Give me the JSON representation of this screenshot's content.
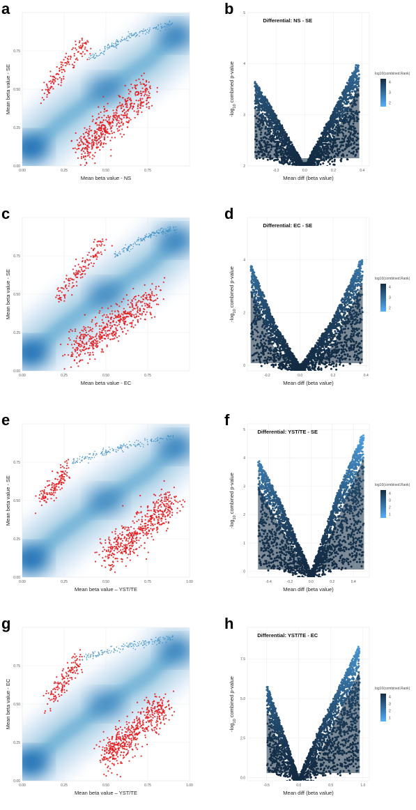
{
  "figure": {
    "panels": [
      {
        "id": "a",
        "letter": "a",
        "kind": "density",
        "xlabel": "Mean beta value - NS",
        "ylabel": "Mean beta value - SE",
        "xticks": [
          "0.00",
          "0.25",
          "0.50",
          "0.75"
        ],
        "yticks": [
          "0.00",
          "0.25",
          "0.50",
          "0.75"
        ]
      },
      {
        "id": "b",
        "letter": "b",
        "kind": "volcano",
        "title": "Differential: NS - SE",
        "xlabel": "Mean diff (beta value)",
        "ylabel_main": "-log",
        "ylabel_sub": "10",
        "ylabel_rest": " combined p-value",
        "xticks": [
          "-0.2",
          "0.0",
          "0.2",
          "0.4"
        ],
        "yticks": [
          "2",
          "3",
          "4",
          "5"
        ],
        "legend_title": "log10(combined.Rank)",
        "legend_ticks": [
          "4",
          "3",
          "2"
        ]
      },
      {
        "id": "c",
        "letter": "c",
        "kind": "density",
        "xlabel": "Mean beta value - EC",
        "ylabel": "Mean beta value - SE",
        "xticks": [
          "0.00",
          "0.25",
          "0.50",
          "0.75"
        ],
        "yticks": [
          "0.00",
          "0.25",
          "0.50",
          "0.75"
        ]
      },
      {
        "id": "d",
        "letter": "d",
        "kind": "volcano",
        "title": "Differential: EC - SE",
        "xlabel": "Mean diff (beta value)",
        "ylabel_main": "-log",
        "ylabel_sub": "10",
        "ylabel_rest": " combined p-value",
        "xticks": [
          "-0.2",
          "0.0",
          "0.2",
          "0.4"
        ],
        "yticks": [
          "0",
          "2",
          "4"
        ],
        "legend_title": "log10(combined.Rank)",
        "legend_ticks": [
          "4",
          "3",
          "2"
        ]
      },
      {
        "id": "e",
        "letter": "e",
        "kind": "density",
        "xlabel": "Mean beta value – YST/TE",
        "ylabel": "Mean beta value - SE",
        "xticks": [
          "0.00",
          "0.25",
          "0.50",
          "0.75",
          "1.00"
        ],
        "yticks": [
          "0.00",
          "0.25",
          "0.50",
          "0.75"
        ]
      },
      {
        "id": "f",
        "letter": "f",
        "kind": "volcano",
        "title": "Differential: YST/TE - SE",
        "xlabel": "Mean diff (beta value)",
        "ylabel_main": "-log",
        "ylabel_sub": "10",
        "ylabel_rest": " combined p-value",
        "xticks": [
          "-0.4",
          "-0.2",
          "0.0",
          "0.2",
          "0.4"
        ],
        "yticks": [
          "0",
          "1",
          "2",
          "3",
          "4",
          "5"
        ],
        "legend_title": "log10(combined.Rank)",
        "legend_ticks": [
          "4",
          "3",
          "2",
          "1"
        ]
      },
      {
        "id": "g",
        "letter": "g",
        "kind": "density",
        "xlabel": "Mean beta value – YST/TE",
        "ylabel": "Mean beta value - EC",
        "xticks": [
          "0.00",
          "0.25",
          "0.50",
          "0.75",
          "1.00"
        ],
        "yticks": [
          "0.00",
          "0.25",
          "0.50",
          "0.75"
        ]
      },
      {
        "id": "h",
        "letter": "h",
        "kind": "volcano",
        "title": "Differential: YST/TE - EC",
        "xlabel": "Mean diff (beta value)",
        "ylabel_main": "-log",
        "ylabel_sub": "10",
        "ylabel_rest": " combined p-value",
        "xticks": [
          "-0.5",
          "0.0",
          "0.5",
          "1.0"
        ],
        "yticks": [
          "0.0",
          "2.5",
          "5.0",
          "7.5"
        ],
        "legend_title": "log10(combined.Rank)",
        "legend_ticks": [
          "4",
          "3",
          "2",
          "1"
        ]
      }
    ]
  },
  "colors": {
    "density_light": "#dbe9f6",
    "density_mid": "#6baed6",
    "density_dark": "#2171b5",
    "sig_red": "#e41a1c",
    "sig_blue": "#4292c6",
    "volcano_dark": "#132b43",
    "volcano_light": "#56b1f7"
  },
  "chart_data": [
    {
      "type": "scatter",
      "panel": "a",
      "x_name": "Mean beta value - NS",
      "y_name": "Mean beta value - SE",
      "xlim": [
        0,
        1
      ],
      "ylim": [
        0,
        1
      ],
      "grid": true,
      "density_ridge": [
        [
          0.05,
          0.12
        ],
        [
          0.25,
          0.3
        ],
        [
          0.5,
          0.5
        ],
        [
          0.75,
          0.68
        ],
        [
          0.92,
          0.85
        ]
      ],
      "highlight_clusters": [
        {
          "color": "red",
          "x_range": [
            0.2,
            0.8
          ],
          "y_range": [
            0.05,
            0.55
          ],
          "approx_trend": [
            [
              0.35,
              0.1
            ],
            [
              0.5,
              0.25
            ],
            [
              0.75,
              0.5
            ]
          ]
        },
        {
          "color": "red",
          "x_range": [
            0.1,
            0.4
          ],
          "y_range": [
            0.4,
            0.85
          ],
          "approx_trend": [
            [
              0.12,
              0.45
            ],
            [
              0.25,
              0.65
            ],
            [
              0.38,
              0.8
            ]
          ]
        },
        {
          "color": "blue",
          "x_range": [
            0.3,
            0.95
          ],
          "y_range": [
            0.6,
            0.95
          ],
          "approx_trend": [
            [
              0.4,
              0.7
            ],
            [
              0.65,
              0.85
            ],
            [
              0.9,
              0.93
            ]
          ]
        }
      ]
    },
    {
      "type": "scatter",
      "panel": "b",
      "title": "Differential: NS - SE",
      "xlabel": "Mean diff (beta value)",
      "ylabel": "-log10 combined p-value",
      "xlim": [
        -0.4,
        0.45
      ],
      "ylim": [
        2,
        5
      ],
      "legend": "right",
      "envelope": [
        [
          -0.35,
          3.7
        ],
        [
          -0.2,
          3.0
        ],
        [
          0.0,
          2.0
        ],
        [
          0.2,
          3.1
        ],
        [
          0.38,
          4.1
        ]
      ]
    },
    {
      "type": "scatter",
      "panel": "c",
      "x_name": "Mean beta value - EC",
      "y_name": "Mean beta value - SE",
      "xlim": [
        0,
        1
      ],
      "ylim": [
        0,
        1
      ],
      "grid": true,
      "density_ridge": [
        [
          0.05,
          0.12
        ],
        [
          0.25,
          0.3
        ],
        [
          0.5,
          0.5
        ],
        [
          0.75,
          0.68
        ],
        [
          0.92,
          0.85
        ]
      ],
      "highlight_clusters": [
        {
          "color": "red",
          "x_range": [
            0.2,
            0.85
          ],
          "y_range": [
            0.1,
            0.55
          ],
          "approx_trend": [
            [
              0.3,
              0.12
            ],
            [
              0.55,
              0.3
            ],
            [
              0.8,
              0.5
            ]
          ]
        },
        {
          "color": "red",
          "x_range": [
            0.15,
            0.55
          ],
          "y_range": [
            0.4,
            0.9
          ],
          "approx_trend": [
            [
              0.2,
              0.45
            ],
            [
              0.35,
              0.65
            ],
            [
              0.5,
              0.85
            ]
          ]
        },
        {
          "color": "blue",
          "x_range": [
            0.5,
            0.95
          ],
          "y_range": [
            0.55,
            0.95
          ],
          "approx_trend": [
            [
              0.55,
              0.75
            ],
            [
              0.75,
              0.88
            ],
            [
              0.92,
              0.93
            ]
          ]
        }
      ]
    },
    {
      "type": "scatter",
      "panel": "d",
      "title": "Differential: EC - SE",
      "xlabel": "Mean diff (beta value)",
      "ylabel": "-log10 combined p-value",
      "xlim": [
        -0.32,
        0.42
      ],
      "ylim": [
        -0.2,
        5.6
      ],
      "legend": "right",
      "envelope": [
        [
          -0.3,
          3.9
        ],
        [
          -0.15,
          1.6
        ],
        [
          0.0,
          0.0
        ],
        [
          0.2,
          1.8
        ],
        [
          0.38,
          4.2
        ]
      ]
    },
    {
      "type": "scatter",
      "panel": "e",
      "x_name": "Mean beta value – YST/TE",
      "y_name": "Mean beta value - SE",
      "xlim": [
        0,
        1
      ],
      "ylim": [
        0,
        1
      ],
      "grid": true,
      "density_ridge": [
        [
          0.05,
          0.12
        ],
        [
          0.25,
          0.3
        ],
        [
          0.5,
          0.5
        ],
        [
          0.75,
          0.68
        ],
        [
          0.92,
          0.85
        ]
      ],
      "highlight_clusters": [
        {
          "color": "red",
          "x_range": [
            0.45,
            0.95
          ],
          "y_range": [
            0.1,
            0.55
          ],
          "approx_trend": [
            [
              0.5,
              0.12
            ],
            [
              0.7,
              0.3
            ],
            [
              0.9,
              0.5
            ]
          ]
        },
        {
          "color": "red",
          "x_range": [
            0.1,
            0.3
          ],
          "y_range": [
            0.45,
            0.75
          ],
          "approx_trend": [
            [
              0.12,
              0.5
            ],
            [
              0.2,
              0.6
            ],
            [
              0.28,
              0.72
            ]
          ]
        },
        {
          "color": "blue",
          "x_range": [
            0.25,
            0.95
          ],
          "y_range": [
            0.7,
            0.95
          ],
          "approx_trend": [
            [
              0.3,
              0.75
            ],
            [
              0.6,
              0.85
            ],
            [
              0.9,
              0.92
            ]
          ]
        }
      ]
    },
    {
      "type": "scatter",
      "panel": "f",
      "title": "Differential: YST/TE - SE",
      "xlabel": "Mean diff (beta value)",
      "ylabel": "-log10 combined p-value",
      "xlim": [
        -0.6,
        0.55
      ],
      "ylim": [
        -0.2,
        5.2
      ],
      "legend": "right",
      "envelope": [
        [
          -0.5,
          4.0
        ],
        [
          -0.3,
          2.6
        ],
        [
          0.0,
          0.0
        ],
        [
          0.25,
          2.8
        ],
        [
          0.5,
          5.0
        ]
      ]
    },
    {
      "type": "scatter",
      "panel": "g",
      "x_name": "Mean beta value – YST/TE",
      "y_name": "Mean beta value - EC",
      "xlim": [
        0,
        1
      ],
      "ylim": [
        0,
        1
      ],
      "grid": true,
      "density_ridge": [
        [
          0.05,
          0.12
        ],
        [
          0.25,
          0.3
        ],
        [
          0.5,
          0.5
        ],
        [
          0.75,
          0.68
        ],
        [
          0.92,
          0.85
        ]
      ],
      "highlight_clusters": [
        {
          "color": "red",
          "x_range": [
            0.45,
            0.9
          ],
          "y_range": [
            0.1,
            0.55
          ],
          "approx_trend": [
            [
              0.5,
              0.15
            ],
            [
              0.65,
              0.3
            ],
            [
              0.85,
              0.5
            ]
          ]
        },
        {
          "color": "red",
          "x_range": [
            0.1,
            0.4
          ],
          "y_range": [
            0.45,
            0.9
          ],
          "approx_trend": [
            [
              0.15,
              0.5
            ],
            [
              0.25,
              0.65
            ],
            [
              0.35,
              0.8
            ]
          ]
        },
        {
          "color": "blue",
          "x_range": [
            0.3,
            0.95
          ],
          "y_range": [
            0.75,
            0.95
          ],
          "approx_trend": [
            [
              0.35,
              0.8
            ],
            [
              0.65,
              0.88
            ],
            [
              0.9,
              0.93
            ]
          ]
        }
      ]
    },
    {
      "type": "scatter",
      "panel": "h",
      "title": "Differential: YST/TE - EC",
      "xlabel": "Mean diff (beta value)",
      "ylabel": "-log10 combined p-value",
      "xlim": [
        -0.8,
        1.1
      ],
      "ylim": [
        -0.2,
        9.5
      ],
      "legend": "right",
      "envelope": [
        [
          -0.5,
          6.0
        ],
        [
          -0.2,
          2.5
        ],
        [
          0.0,
          0.0
        ],
        [
          0.3,
          3.0
        ],
        [
          0.95,
          8.5
        ]
      ]
    }
  ]
}
